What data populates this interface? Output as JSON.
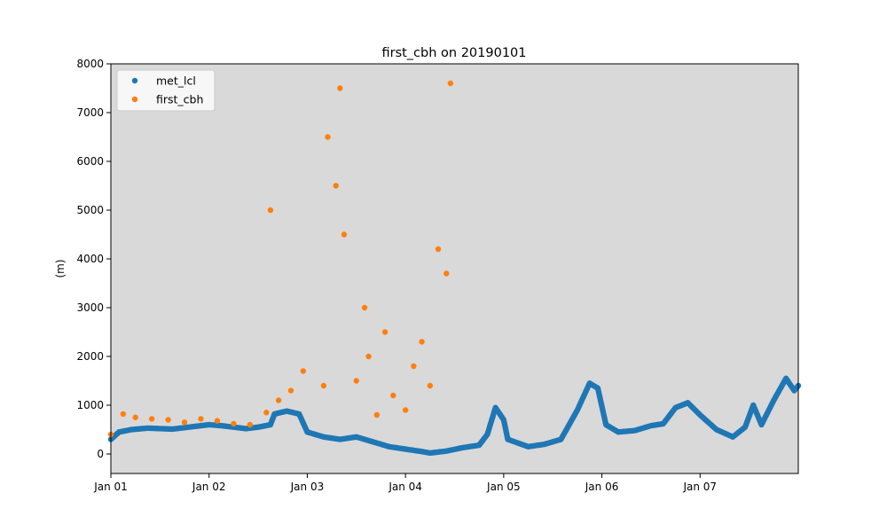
{
  "chart_data": {
    "type": "scatter",
    "title": "first_cbh on 20190101",
    "xlabel": "",
    "ylabel": "(m)",
    "xlim": [
      "2019-01-01",
      "2019-01-08"
    ],
    "ylim": [
      -400,
      8000
    ],
    "x_ticks": [
      {
        "value": "2019-01-01",
        "label": "Jan 01"
      },
      {
        "value": "2019-01-02",
        "label": "Jan 02"
      },
      {
        "value": "2019-01-03",
        "label": "Jan 03"
      },
      {
        "value": "2019-01-04",
        "label": "Jan 04"
      },
      {
        "value": "2019-01-05",
        "label": "Jan 05"
      },
      {
        "value": "2019-01-06",
        "label": "Jan 06"
      },
      {
        "value": "2019-01-07",
        "label": "Jan 07"
      }
    ],
    "y_ticks": [
      0,
      1000,
      2000,
      3000,
      4000,
      5000,
      6000,
      7000,
      8000
    ],
    "grid": false,
    "background": "#d9d9d9",
    "legend_position": "top-left",
    "series": [
      {
        "name": "met_lcl",
        "color": "#1f77b4",
        "points": [
          [
            "2019-01-01 00:00",
            300
          ],
          [
            "2019-01-01 02:00",
            450
          ],
          [
            "2019-01-01 05:00",
            500
          ],
          [
            "2019-01-01 09:00",
            530
          ],
          [
            "2019-01-01 12:00",
            520
          ],
          [
            "2019-01-01 15:00",
            510
          ],
          [
            "2019-01-01 18:00",
            540
          ],
          [
            "2019-01-01 22:00",
            580
          ],
          [
            "2019-01-02 00:00",
            600
          ],
          [
            "2019-01-02 03:00",
            580
          ],
          [
            "2019-01-02 06:00",
            550
          ],
          [
            "2019-01-02 09:00",
            520
          ],
          [
            "2019-01-02 12:00",
            550
          ],
          [
            "2019-01-02 15:00",
            600
          ],
          [
            "2019-01-02 16:00",
            820
          ],
          [
            "2019-01-02 19:00",
            880
          ],
          [
            "2019-01-02 22:00",
            820
          ],
          [
            "2019-01-03 00:00",
            450
          ],
          [
            "2019-01-03 04:00",
            350
          ],
          [
            "2019-01-03 08:00",
            300
          ],
          [
            "2019-01-03 12:00",
            350
          ],
          [
            "2019-01-03 16:00",
            250
          ],
          [
            "2019-01-03 20:00",
            150
          ],
          [
            "2019-01-04 00:00",
            100
          ],
          [
            "2019-01-04 04:00",
            50
          ],
          [
            "2019-01-04 06:00",
            20
          ],
          [
            "2019-01-04 10:00",
            60
          ],
          [
            "2019-01-04 14:00",
            130
          ],
          [
            "2019-01-04 18:00",
            180
          ],
          [
            "2019-01-04 20:00",
            400
          ],
          [
            "2019-01-04 22:00",
            950
          ],
          [
            "2019-01-05 00:00",
            700
          ],
          [
            "2019-01-05 01:00",
            300
          ],
          [
            "2019-01-05 06:00",
            150
          ],
          [
            "2019-01-05 10:00",
            200
          ],
          [
            "2019-01-05 14:00",
            300
          ],
          [
            "2019-01-05 18:00",
            900
          ],
          [
            "2019-01-05 21:00",
            1450
          ],
          [
            "2019-01-05 23:00",
            1350
          ],
          [
            "2019-01-06 01:00",
            600
          ],
          [
            "2019-01-06 04:00",
            450
          ],
          [
            "2019-01-06 08:00",
            480
          ],
          [
            "2019-01-06 12:00",
            580
          ],
          [
            "2019-01-06 15:00",
            620
          ],
          [
            "2019-01-06 18:00",
            950
          ],
          [
            "2019-01-06 21:00",
            1050
          ],
          [
            "2019-01-07 00:00",
            800
          ],
          [
            "2019-01-07 04:00",
            500
          ],
          [
            "2019-01-07 08:00",
            350
          ],
          [
            "2019-01-07 11:00",
            550
          ],
          [
            "2019-01-07 13:00",
            1000
          ],
          [
            "2019-01-07 15:00",
            600
          ],
          [
            "2019-01-07 18:00",
            1100
          ],
          [
            "2019-01-07 21:00",
            1550
          ],
          [
            "2019-01-07 23:00",
            1300
          ],
          [
            "2019-01-08 00:00",
            1400
          ]
        ]
      },
      {
        "name": "first_cbh",
        "color": "#ff7f0e",
        "points": [
          [
            "2019-01-01 00:00",
            400
          ],
          [
            "2019-01-01 03:00",
            820
          ],
          [
            "2019-01-01 06:00",
            750
          ],
          [
            "2019-01-01 10:00",
            720
          ],
          [
            "2019-01-01 14:00",
            700
          ],
          [
            "2019-01-01 18:00",
            650
          ],
          [
            "2019-01-01 22:00",
            720
          ],
          [
            "2019-01-02 02:00",
            680
          ],
          [
            "2019-01-02 06:00",
            620
          ],
          [
            "2019-01-02 10:00",
            600
          ],
          [
            "2019-01-02 14:00",
            850
          ],
          [
            "2019-01-02 15:00",
            5000
          ],
          [
            "2019-01-02 17:00",
            1100
          ],
          [
            "2019-01-02 20:00",
            1300
          ],
          [
            "2019-01-02 23:00",
            1700
          ],
          [
            "2019-01-03 04:00",
            1400
          ],
          [
            "2019-01-03 05:00",
            6500
          ],
          [
            "2019-01-03 07:00",
            5500
          ],
          [
            "2019-01-03 08:00",
            7500
          ],
          [
            "2019-01-03 09:00",
            4500
          ],
          [
            "2019-01-03 12:00",
            1500
          ],
          [
            "2019-01-03 14:00",
            3000
          ],
          [
            "2019-01-03 15:00",
            2000
          ],
          [
            "2019-01-03 17:00",
            800
          ],
          [
            "2019-01-03 19:00",
            2500
          ],
          [
            "2019-01-03 21:00",
            1200
          ],
          [
            "2019-01-04 00:00",
            900
          ],
          [
            "2019-01-04 02:00",
            1800
          ],
          [
            "2019-01-04 04:00",
            2300
          ],
          [
            "2019-01-04 06:00",
            1400
          ],
          [
            "2019-01-04 08:00",
            4200
          ],
          [
            "2019-01-04 10:00",
            3700
          ],
          [
            "2019-01-04 11:00",
            7600
          ]
        ]
      }
    ]
  }
}
